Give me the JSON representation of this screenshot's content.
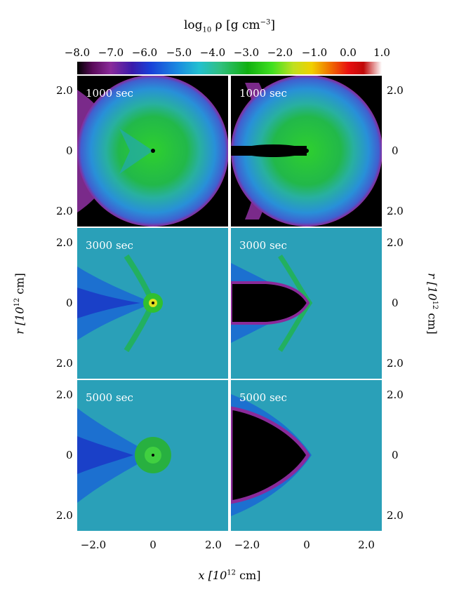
{
  "colorbar": {
    "title_prefix": "log",
    "title_sub": "10",
    "title_mid": " ρ [g cm",
    "title_sup": "−3",
    "title_suffix": "]",
    "ticks": [
      "−8.0",
      "−7.0",
      "−6.0",
      "−5.0",
      "−4.0",
      "−3.0",
      "−2.0",
      "−1.0",
      "0.0",
      "1.0"
    ]
  },
  "panels": [
    {
      "time": "1000 sec"
    },
    {
      "time": "1000 sec"
    },
    {
      "time": "3000 sec"
    },
    {
      "time": "3000 sec"
    },
    {
      "time": "5000 sec"
    },
    {
      "time": "5000 sec"
    }
  ],
  "yticks": {
    "top": "2.0",
    "mid": "0",
    "bottom": "2.0"
  },
  "xticks": {
    "left": "−2.0",
    "mid": "0",
    "right": "2.0"
  },
  "ylabel": {
    "text": "r  [10",
    "sup": "12",
    "unit": " cm]"
  },
  "xlabel": {
    "text": "x  [10",
    "sup": "12",
    "unit": " cm]"
  }
}
